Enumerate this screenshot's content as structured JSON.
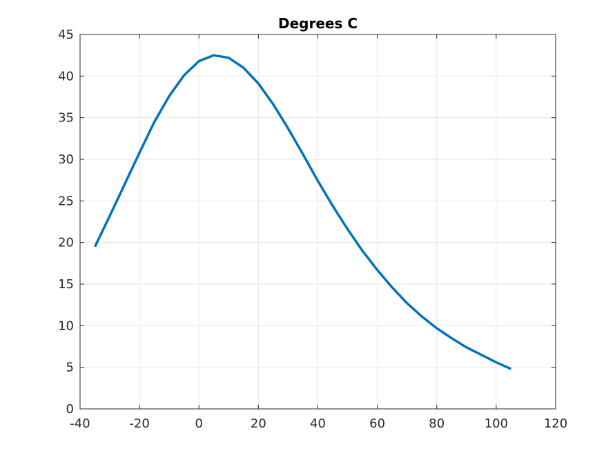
{
  "chart_data": {
    "type": "line",
    "title": "Degrees C",
    "xlabel": "",
    "ylabel": "",
    "xlim": [
      -40,
      120
    ],
    "ylim": [
      0,
      45
    ],
    "xticks": [
      -40,
      -20,
      0,
      20,
      40,
      60,
      80,
      100,
      120
    ],
    "yticks": [
      0,
      5,
      10,
      15,
      20,
      25,
      30,
      35,
      40,
      45
    ],
    "grid": true,
    "series_color": "#0072BD",
    "grid_color": "#E6E6E6",
    "axis_color": "#262626",
    "series": [
      {
        "x": [
          -35,
          -30,
          -25,
          -20,
          -15,
          -10,
          -5,
          0,
          5,
          10,
          15,
          20,
          25,
          30,
          35,
          40,
          45,
          50,
          55,
          60,
          65,
          70,
          75,
          80,
          85,
          90,
          95,
          100,
          105
        ],
        "y": [
          19.5,
          23.2,
          27.0,
          30.8,
          34.5,
          37.6,
          40.1,
          41.8,
          42.5,
          42.2,
          41.0,
          39.1,
          36.6,
          33.7,
          30.6,
          27.4,
          24.4,
          21.6,
          19.0,
          16.7,
          14.6,
          12.7,
          11.1,
          9.7,
          8.5,
          7.4,
          6.5,
          5.6,
          4.8
        ]
      }
    ]
  }
}
